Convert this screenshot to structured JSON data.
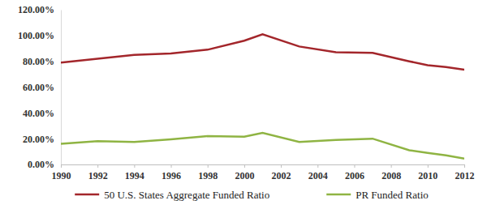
{
  "chart_data": {
    "type": "line",
    "x": [
      1990,
      1992,
      1994,
      1996,
      1998,
      2000,
      2001,
      2003,
      2005,
      2007,
      2009,
      2010,
      2011,
      2012
    ],
    "series": [
      {
        "name": "50 U.S. States Aggregate Funded Ratio",
        "color": "#a3262b",
        "values": [
          79,
          82,
          85,
          86,
          89,
          96,
          101,
          91.5,
          87,
          86.5,
          80,
          77,
          75.5,
          73.5
        ]
      },
      {
        "name": "PR Funded Ratio",
        "color": "#8fb443",
        "values": [
          16,
          18,
          17.5,
          19.5,
          22,
          21.5,
          24.5,
          17.5,
          19,
          20,
          11,
          9,
          7,
          4.5
        ]
      }
    ],
    "xlim": [
      1990,
      2012
    ],
    "xticks": [
      1990,
      1992,
      1994,
      1996,
      1998,
      2000,
      2002,
      2004,
      2006,
      2008,
      2010,
      2012
    ],
    "ylim": [
      0,
      120
    ],
    "yticks": [
      {
        "value": 0,
        "label": "0.00%"
      },
      {
        "value": 20,
        "label": "20.00%"
      },
      {
        "value": 40,
        "label": "40.00%"
      },
      {
        "value": 60,
        "label": "60.00%"
      },
      {
        "value": 80,
        "label": "80.00%"
      },
      {
        "value": 100,
        "label": "100.00%"
      },
      {
        "value": 120,
        "label": "120.00%"
      }
    ],
    "grid": false,
    "legend": "bottom"
  }
}
